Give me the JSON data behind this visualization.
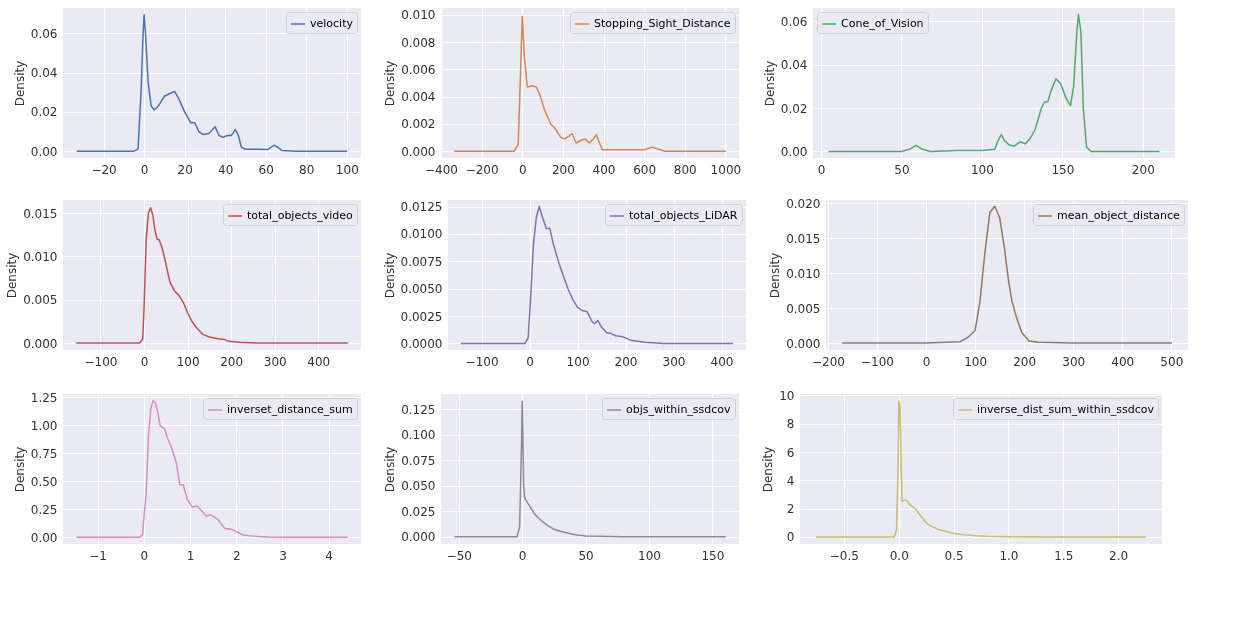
{
  "chart_data": [
    {
      "type": "line",
      "ylabel": "Density",
      "legend": "top right",
      "grid": true,
      "xlim": [
        -40,
        107
      ],
      "xticks": [
        {
          "value": -20,
          "label": "−20"
        },
        0,
        20,
        40,
        60,
        80,
        100
      ],
      "ylim": [
        -0.0035,
        0.073
      ],
      "yticks": [
        {
          "value": 0,
          "label": "0.00"
        },
        0.02,
        0.04,
        0.06
      ],
      "series": [
        {
          "name": "velocity",
          "color": "#4c72b0",
          "x": [
            -33,
            -5,
            -3,
            -1.5,
            -0.5,
            0,
            0.7,
            2,
            3.5,
            5,
            7,
            10,
            12,
            15,
            17,
            20,
            23,
            25,
            27,
            29,
            32,
            35,
            37,
            39,
            41,
            43,
            45,
            46.5,
            48,
            50,
            57,
            61,
            64,
            66,
            68,
            75,
            100
          ],
          "values": [
            0,
            0,
            0.001,
            0.03,
            0.06,
            0.0695,
            0.06,
            0.035,
            0.023,
            0.021,
            0.023,
            0.028,
            0.029,
            0.0305,
            0.027,
            0.02,
            0.0145,
            0.0145,
            0.01,
            0.0085,
            0.009,
            0.0125,
            0.008,
            0.007,
            0.008,
            0.008,
            0.011,
            0.008,
            0.002,
            0.001,
            0.001,
            0.0008,
            0.003,
            0.002,
            0.0003,
            0,
            0
          ]
        }
      ]
    },
    {
      "type": "line",
      "ylabel": "Density",
      "legend": "top right",
      "grid": true,
      "xlim": [
        -400,
        1067
      ],
      "xticks": [
        {
          "value": -400,
          "label": "−400"
        },
        {
          "value": -200,
          "label": "−200"
        },
        0,
        200,
        400,
        600,
        800,
        1000
      ],
      "ylim": [
        -0.0005,
        0.0105
      ],
      "yticks": [
        {
          "value": 0,
          "label": "0.000"
        },
        0.002,
        0.004,
        0.006,
        0.008,
        {
          "value": 0.01,
          "label": "0.010"
        }
      ],
      "series": [
        {
          "name": "Stopping_Sight_Distance",
          "color": "#dd8452",
          "x": [
            -333,
            -40,
            -20,
            -8,
            0,
            10,
            25,
            50,
            70,
            90,
            110,
            140,
            160,
            190,
            210,
            230,
            245,
            265,
            290,
            310,
            330,
            350,
            365,
            380,
            395,
            450,
            550,
            600,
            640,
            680,
            700,
            1000
          ],
          "values": [
            0,
            0,
            0.0005,
            0.006,
            0.0099,
            0.007,
            0.0047,
            0.0048,
            0.0047,
            0.004,
            0.003,
            0.002,
            0.0017,
            0.001,
            0.0009,
            0.0011,
            0.0013,
            0.0006,
            0.0008,
            0.0009,
            0.0006,
            0.0009,
            0.0012,
            0.0006,
            0.0001,
            0.0001,
            0.0001,
            0.0001,
            0.0003,
            0.0001,
            0,
            0
          ]
        }
      ]
    },
    {
      "type": "line",
      "ylabel": "Density",
      "legend": "top left",
      "grid": true,
      "xlim": [
        -5,
        220
      ],
      "xticks": [
        0,
        50,
        100,
        150,
        200
      ],
      "ylim": [
        -0.003,
        0.066
      ],
      "yticks": [
        {
          "value": 0,
          "label": "0.00"
        },
        0.02,
        0.04,
        0.06
      ],
      "series": [
        {
          "name": "Cone_of_Vision",
          "color": "#55a868",
          "x": [
            5,
            50,
            55,
            59,
            63,
            68,
            85,
            100,
            108,
            110,
            112,
            114,
            117,
            120,
            124,
            127,
            130,
            133,
            137,
            139,
            141,
            143,
            146,
            149,
            152,
            155,
            157,
            159,
            160,
            161.5,
            163,
            165,
            168,
            210
          ],
          "values": [
            0,
            0,
            0.001,
            0.0028,
            0.001,
            0,
            0.0005,
            0.0005,
            0.001,
            0.005,
            0.0078,
            0.005,
            0.003,
            0.0025,
            0.0045,
            0.0035,
            0.006,
            0.01,
            0.02,
            0.0228,
            0.023,
            0.028,
            0.0335,
            0.031,
            0.025,
            0.021,
            0.03,
            0.055,
            0.063,
            0.055,
            0.02,
            0.002,
            0,
            0
          ]
        }
      ]
    },
    {
      "type": "line",
      "ylabel": "Density",
      "legend": "top right",
      "grid": true,
      "xlim": [
        -186,
        498
      ],
      "xticks": [
        {
          "value": -100,
          "label": "−100"
        },
        0,
        100,
        200,
        300,
        400
      ],
      "ylim": [
        -0.0008,
        0.0165
      ],
      "yticks": [
        {
          "value": 0,
          "label": "0.000"
        },
        0.005,
        {
          "value": 0.01,
          "label": "0.010"
        },
        0.015
      ],
      "series": [
        {
          "name": "total_objects_video",
          "color": "#c44e52",
          "x": [
            -155,
            -10,
            -3,
            0,
            5,
            10,
            15,
            20,
            25,
            30,
            35,
            40,
            45,
            55,
            60,
            70,
            80,
            90,
            100,
            110,
            120,
            135,
            150,
            170,
            185,
            195,
            220,
            260,
            467
          ],
          "values": [
            0,
            0,
            0.0005,
            0.004,
            0.012,
            0.015,
            0.0156,
            0.0148,
            0.013,
            0.012,
            0.0119,
            0.0112,
            0.0103,
            0.008,
            0.007,
            0.006,
            0.0055,
            0.0047,
            0.0035,
            0.0025,
            0.0018,
            0.001,
            0.0007,
            0.0005,
            0.0004,
            0.0002,
            0.0001,
            0,
            0
          ]
        }
      ]
    },
    {
      "type": "line",
      "ylabel": "Density",
      "legend": "top right",
      "grid": true,
      "xlim": [
        -170,
        451
      ],
      "xticks": [
        {
          "value": -100,
          "label": "−100"
        },
        0,
        100,
        200,
        300,
        400
      ],
      "ylim": [
        -0.0006,
        0.0131
      ],
      "yticks": [
        {
          "value": 0,
          "label": "0.0000"
        },
        0.0025,
        {
          "value": 0.005,
          "label": "0.0050"
        },
        0.0075,
        {
          "value": 0.01,
          "label": "0.0100"
        },
        0.0125
      ],
      "series": [
        {
          "name": "total_objects_LiDAR",
          "color": "#8172b3",
          "x": [
            -142,
            -10,
            -3,
            2,
            8,
            14,
            20,
            27,
            35,
            42,
            50,
            60,
            70,
            80,
            90,
            100,
            110,
            120,
            130,
            135,
            142,
            150,
            160,
            170,
            180,
            195,
            210,
            240,
            280,
            423
          ],
          "values": [
            0,
            0,
            0.0005,
            0.004,
            0.009,
            0.0115,
            0.0125,
            0.0115,
            0.0105,
            0.0105,
            0.009,
            0.0075,
            0.0062,
            0.005,
            0.004,
            0.0033,
            0.003,
            0.0029,
            0.002,
            0.0018,
            0.0021,
            0.0015,
            0.001,
            0.0009,
            0.0007,
            0.0006,
            0.0003,
            0.0001,
            0,
            0
          ]
        }
      ]
    },
    {
      "type": "line",
      "ylabel": "Density",
      "legend": "top right",
      "grid": true,
      "xlim": [
        -204,
        534
      ],
      "xticks": [
        {
          "value": -200,
          "label": "−200"
        },
        {
          "value": -100,
          "label": "−100"
        },
        0,
        100,
        200,
        300,
        400,
        500
      ],
      "ylim": [
        -0.001,
        0.0205
      ],
      "yticks": [
        {
          "value": 0,
          "label": "0.000"
        },
        0.005,
        {
          "value": 0.01,
          "label": "0.010"
        },
        0.015,
        {
          "value": 0.02,
          "label": "0.020"
        }
      ],
      "series": [
        {
          "name": "mean_object_distance",
          "color": "#937860",
          "x": [
            -170,
            0,
            70,
            85,
            100,
            110,
            120,
            130,
            140,
            150,
            160,
            168,
            175,
            185,
            195,
            210,
            230,
            300,
            500
          ],
          "values": [
            0,
            0,
            0.0002,
            0.0008,
            0.0018,
            0.006,
            0.013,
            0.0187,
            0.0196,
            0.018,
            0.0135,
            0.009,
            0.006,
            0.0035,
            0.0015,
            0.0003,
            0.0001,
            0,
            0
          ]
        }
      ]
    },
    {
      "type": "line",
      "ylabel": "Density",
      "legend": "top right",
      "grid": true,
      "xlim": [
        -1.75,
        4.7
      ],
      "xticks": [
        {
          "value": -1,
          "label": "−1"
        },
        0,
        1,
        2,
        3,
        4
      ],
      "ylim": [
        -0.06,
        1.28
      ],
      "yticks": [
        {
          "value": 0,
          "label": "0.00"
        },
        0.25,
        {
          "value": 0.5,
          "label": "0.50"
        },
        0.75,
        {
          "value": 1,
          "label": "1.00"
        },
        1.25
      ],
      "series": [
        {
          "name": "inverset_distance_sum",
          "color": "#da8bc3",
          "x": [
            -1.45,
            -0.1,
            -0.03,
            0.05,
            0.1,
            0.15,
            0.2,
            0.25,
            0.3,
            0.35,
            0.4,
            0.45,
            0.5,
            0.6,
            0.7,
            0.78,
            0.85,
            0.95,
            1.05,
            1.15,
            1.2,
            1.35,
            1.45,
            1.6,
            1.75,
            1.9,
            2.0,
            2.15,
            2.4,
            2.7,
            3.0,
            4.4
          ],
          "values": [
            0,
            0,
            0.02,
            0.4,
            0.9,
            1.15,
            1.22,
            1.2,
            1.12,
            1.0,
            0.98,
            0.97,
            0.9,
            0.8,
            0.67,
            0.47,
            0.47,
            0.33,
            0.27,
            0.28,
            0.26,
            0.19,
            0.2,
            0.16,
            0.08,
            0.07,
            0.05,
            0.02,
            0.01,
            0.003,
            0.001,
            0
          ]
        }
      ]
    },
    {
      "type": "line",
      "ylabel": "Density",
      "legend": "top right",
      "grid": true,
      "xlim": [
        -64,
        171
      ],
      "xticks": [
        {
          "value": -50,
          "label": "−50"
        },
        0,
        50,
        100,
        150
      ],
      "ylim": [
        -0.007,
        0.14
      ],
      "yticks": [
        {
          "value": 0,
          "label": "0.000"
        },
        0.025,
        {
          "value": 0.05,
          "label": "0.050"
        },
        0.075,
        {
          "value": 0.1,
          "label": "0.100"
        },
        0.125
      ],
      "series": [
        {
          "name": "objs_within_ssdcov",
          "color": "#8c8c8c",
          "x": [
            -53,
            -4,
            -2,
            -0.5,
            0,
            0.5,
            1.2,
            2,
            5,
            10,
            15,
            20,
            25,
            30,
            35,
            40,
            45,
            50,
            60,
            80,
            100,
            160
          ],
          "values": [
            0,
            0,
            0.01,
            0.09,
            0.133,
            0.1,
            0.05,
            0.038,
            0.032,
            0.022,
            0.016,
            0.011,
            0.0075,
            0.0055,
            0.004,
            0.0025,
            0.0015,
            0.0008,
            0.0005,
            0.0002,
            0.0001,
            0
          ]
        }
      ]
    },
    {
      "type": "line",
      "ylabel": "Density",
      "legend": "top right",
      "grid": true,
      "xlim": [
        -0.9,
        2.4
      ],
      "xticks": [
        {
          "value": -0.5,
          "label": "−0.5"
        },
        {
          "value": 0,
          "label": "0.0"
        },
        0.5,
        {
          "value": 1,
          "label": "1.0"
        },
        1.5,
        {
          "value": 2,
          "label": "2.0"
        }
      ],
      "ylim": [
        -0.5,
        10.1
      ],
      "yticks": [
        0,
        2,
        4,
        6,
        8,
        10
      ],
      "series": [
        {
          "name": "inverse_dist_sum_within_ssdcov",
          "color": "#ccb974",
          "x": [
            -0.75,
            -0.04,
            -0.02,
            -0.005,
            0,
            0.01,
            0.02,
            0.03,
            0.05,
            0.07,
            0.1,
            0.15,
            0.2,
            0.25,
            0.3,
            0.35,
            0.4,
            0.5,
            0.6,
            0.7,
            0.8,
            1.0,
            1.3,
            2.25
          ],
          "values": [
            0,
            0,
            0.5,
            5,
            9.6,
            9.3,
            6,
            2.5,
            2.6,
            2.6,
            2.3,
            2.0,
            1.5,
            1.0,
            0.75,
            0.55,
            0.45,
            0.25,
            0.15,
            0.08,
            0.04,
            0.01,
            0,
            0
          ]
        }
      ]
    }
  ]
}
